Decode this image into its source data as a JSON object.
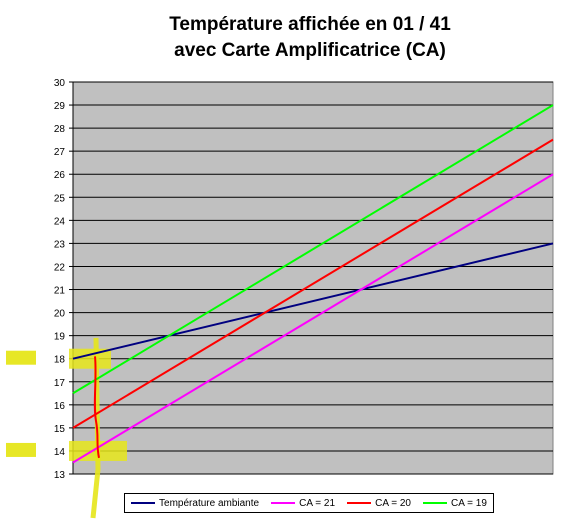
{
  "chart_data": {
    "type": "line",
    "title_line1": "Température affichée en 01 / 41",
    "title_line2": "avec Carte Amplificatrice (CA)",
    "xlabel": "",
    "ylabel": "",
    "ylim": [
      13,
      30
    ],
    "y_ticks": [
      "13",
      "14",
      "15",
      "16",
      "17",
      "18",
      "19",
      "20",
      "21",
      "22",
      "23",
      "24",
      "25",
      "26",
      "27",
      "28",
      "29",
      "30"
    ],
    "grid": true,
    "plot_background": "#c0c0c0",
    "legend_position": "bottom",
    "x": [
      0,
      1
    ],
    "series": [
      {
        "name": "Température ambiante",
        "color": "#000080",
        "values": [
          18,
          23
        ]
      },
      {
        "name": "CA = 21",
        "color": "#ff00ff",
        "values": [
          13.5,
          26
        ]
      },
      {
        "name": "CA = 20",
        "color": "#ff0000",
        "values": [
          15,
          27.5
        ]
      },
      {
        "name": "CA = 19",
        "color": "#00ff00",
        "values": [
          16.5,
          29
        ]
      }
    ],
    "annotations": {
      "highlight_color": "#e6e61a",
      "marker_color": "#ff0000",
      "highlight_levels": [
        18,
        14
      ]
    }
  }
}
